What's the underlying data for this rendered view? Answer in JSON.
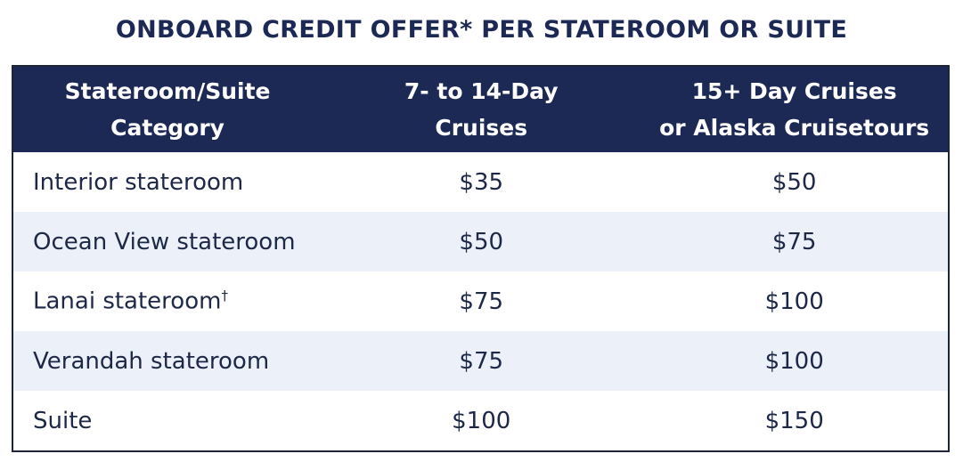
{
  "title": "ONBOARD CREDIT OFFER* PER STATEROOM OR SUITE",
  "table": {
    "headers": [
      [
        "Stateroom/Suite",
        "Category"
      ],
      [
        "7- to 14-Day",
        "Cruises"
      ],
      [
        "15+ Day Cruises",
        "or Alaska Cruisetours"
      ]
    ],
    "rows": [
      {
        "category": "Interior stateroom",
        "mark": "",
        "short": "$35",
        "long": "$50"
      },
      {
        "category": "Ocean View stateroom",
        "mark": "",
        "short": "$50",
        "long": "$75"
      },
      {
        "category": "Lanai stateroom",
        "mark": "†",
        "short": "$75",
        "long": "$100"
      },
      {
        "category": "Verandah stateroom",
        "mark": "",
        "short": "$75",
        "long": "$100"
      },
      {
        "category": "Suite",
        "mark": "",
        "short": "$100",
        "long": "$150"
      }
    ]
  },
  "colors": {
    "header_bg": "#1c2955",
    "stripe": "#ebf0f9",
    "text": "#1d2847"
  }
}
